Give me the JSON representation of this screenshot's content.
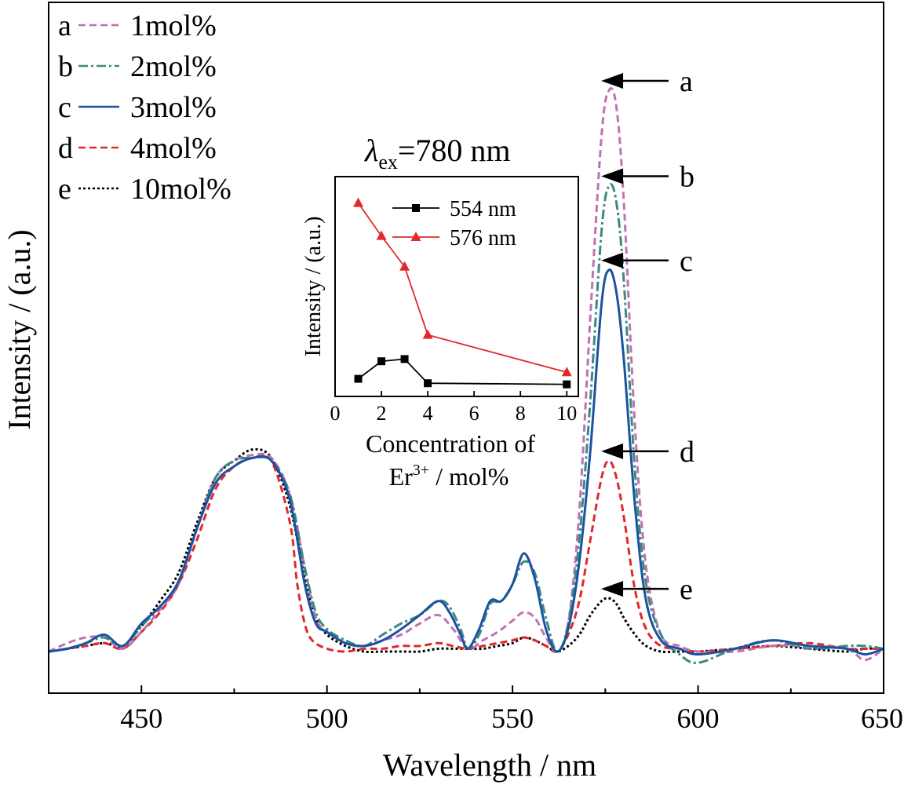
{
  "chart_data": [
    {
      "type": "line",
      "title": "",
      "xlabel": "Wavelength / nm",
      "ylabel": "Intensity / (a.u.)",
      "xlim": [
        425,
        650
      ],
      "xticks": [
        "450",
        "500",
        "550",
        "600",
        "650"
      ],
      "ylim": [
        0,
        1.08
      ],
      "y_ticks_labeled": false,
      "grid": false,
      "legend_position": "top-left",
      "annotation": "=780 nm",
      "annotation_symbol": "λ",
      "annotation_sub": "ex",
      "series": [
        {
          "key": "a",
          "name": "1mol%",
          "color": "#c071b3",
          "dash": "dashed",
          "x": [
            425,
            430,
            435,
            440,
            445,
            450,
            455,
            460,
            465,
            470,
            475,
            480,
            485,
            490,
            494,
            497,
            500,
            505,
            510,
            515,
            520,
            525,
            530,
            534,
            538,
            542,
            546,
            550,
            553,
            556,
            559,
            562,
            565,
            568,
            571,
            574,
            576,
            578,
            580,
            583,
            586,
            590,
            595,
            600,
            610,
            620,
            630,
            640,
            645,
            650
          ],
          "y": [
            0.0,
            0.015,
            0.025,
            0.025,
            0.005,
            0.035,
            0.075,
            0.12,
            0.22,
            0.31,
            0.34,
            0.35,
            0.345,
            0.28,
            0.15,
            0.06,
            0.035,
            0.015,
            0.01,
            0.02,
            0.03,
            0.05,
            0.065,
            0.04,
            0.005,
            0.02,
            0.035,
            0.055,
            0.07,
            0.06,
            0.025,
            0.0,
            0.05,
            0.25,
            0.6,
            0.92,
            1.0,
            0.97,
            0.8,
            0.4,
            0.15,
            0.03,
            0.01,
            0.0,
            0.0,
            0.01,
            0.01,
            0.005,
            -0.015,
            0.005
          ]
        },
        {
          "key": "b",
          "name": "2mol%",
          "color": "#3b8a82",
          "dash": "dashdot",
          "x": [
            425,
            430,
            435,
            440,
            445,
            450,
            455,
            460,
            465,
            470,
            475,
            480,
            485,
            490,
            494,
            497,
            500,
            505,
            510,
            515,
            520,
            525,
            530,
            533,
            536,
            538,
            541,
            544,
            547,
            550,
            553,
            556,
            559,
            562,
            565,
            568,
            571,
            574,
            576,
            578,
            580,
            583,
            586,
            590,
            595,
            600,
            610,
            620,
            630,
            640,
            645,
            650
          ],
          "y": [
            0.0,
            0.005,
            0.015,
            0.025,
            0.01,
            0.045,
            0.08,
            0.125,
            0.22,
            0.31,
            0.34,
            0.345,
            0.34,
            0.28,
            0.15,
            0.07,
            0.04,
            0.02,
            0.01,
            0.03,
            0.05,
            0.065,
            0.09,
            0.08,
            0.04,
            0.005,
            0.03,
            0.085,
            0.09,
            0.12,
            0.16,
            0.14,
            0.06,
            0.0,
            0.05,
            0.2,
            0.45,
            0.75,
            0.83,
            0.8,
            0.66,
            0.32,
            0.12,
            0.03,
            -0.005,
            -0.02,
            0.005,
            0.02,
            0.005,
            0.01,
            0.01,
            0.005
          ]
        },
        {
          "key": "c",
          "name": "3mol%",
          "color": "#1c52a0",
          "dash": "solid",
          "x": [
            425,
            430,
            435,
            440,
            445,
            450,
            455,
            460,
            465,
            470,
            475,
            480,
            485,
            490,
            494,
            497,
            500,
            505,
            510,
            515,
            520,
            525,
            530,
            533,
            536,
            538,
            541,
            544,
            547,
            550,
            553,
            556,
            559,
            562,
            565,
            568,
            571,
            574,
            576,
            578,
            580,
            583,
            586,
            590,
            595,
            600,
            610,
            620,
            630,
            640,
            645,
            650
          ],
          "y": [
            0.0,
            0.005,
            0.015,
            0.03,
            0.01,
            0.05,
            0.08,
            0.125,
            0.22,
            0.3,
            0.33,
            0.345,
            0.34,
            0.27,
            0.12,
            0.05,
            0.035,
            0.015,
            0.01,
            0.02,
            0.04,
            0.065,
            0.09,
            0.07,
            0.03,
            0.005,
            0.04,
            0.09,
            0.09,
            0.12,
            0.175,
            0.13,
            0.04,
            0.0,
            0.04,
            0.16,
            0.36,
            0.62,
            0.68,
            0.64,
            0.52,
            0.26,
            0.09,
            0.02,
            0.005,
            -0.005,
            0.005,
            0.02,
            0.01,
            0.005,
            -0.005,
            0.005
          ]
        },
        {
          "key": "d",
          "name": "4mol%",
          "color": "#e02a2a",
          "dash": "dashed",
          "x": [
            425,
            430,
            435,
            440,
            445,
            450,
            455,
            460,
            465,
            470,
            475,
            480,
            485,
            490,
            492,
            494,
            496,
            500,
            505,
            510,
            515,
            520,
            525,
            530,
            534,
            538,
            542,
            546,
            550,
            553,
            556,
            559,
            562,
            565,
            568,
            571,
            574,
            576,
            578,
            580,
            583,
            586,
            590,
            595,
            600,
            610,
            620,
            630,
            640,
            645,
            650
          ],
          "y": [
            0.0,
            0.005,
            0.01,
            0.015,
            0.005,
            0.035,
            0.07,
            0.12,
            0.2,
            0.29,
            0.33,
            0.345,
            0.34,
            0.23,
            0.12,
            0.05,
            0.02,
            0.005,
            0.0,
            0.005,
            0.005,
            0.01,
            0.01,
            0.015,
            0.01,
            0.005,
            0.01,
            0.015,
            0.02,
            0.025,
            0.02,
            0.01,
            0.0,
            0.03,
            0.09,
            0.2,
            0.31,
            0.34,
            0.31,
            0.24,
            0.11,
            0.04,
            0.01,
            0.005,
            0.0,
            0.005,
            0.01,
            0.015,
            0.005,
            0.005,
            0.005
          ]
        },
        {
          "key": "e",
          "name": "10mol%",
          "color": "#000000",
          "dash": "dotted",
          "x": [
            425,
            430,
            435,
            440,
            445,
            450,
            455,
            460,
            465,
            470,
            475,
            480,
            485,
            490,
            494,
            497,
            500,
            505,
            510,
            515,
            520,
            525,
            530,
            534,
            538,
            542,
            546,
            550,
            553,
            556,
            559,
            562,
            565,
            568,
            571,
            574,
            576,
            578,
            580,
            583,
            586,
            590,
            595,
            600,
            610,
            620,
            630,
            640,
            645,
            650
          ],
          "y": [
            0.0,
            0.005,
            0.01,
            0.015,
            0.01,
            0.045,
            0.09,
            0.14,
            0.23,
            0.31,
            0.34,
            0.36,
            0.345,
            0.26,
            0.13,
            0.06,
            0.03,
            0.01,
            0.0,
            0.0,
            0.0,
            0.0,
            0.005,
            0.005,
            0.005,
            0.005,
            0.01,
            0.015,
            0.025,
            0.02,
            0.01,
            0.0,
            0.01,
            0.03,
            0.065,
            0.09,
            0.095,
            0.085,
            0.06,
            0.03,
            0.01,
            0.0,
            0.0,
            0.0,
            0.005,
            0.01,
            0.005,
            0.0,
            0.005,
            0.005
          ]
        }
      ],
      "peak_labels": [
        {
          "text": "a",
          "x": 576,
          "y": 1.0
        },
        {
          "text": "b",
          "x": 576,
          "y": 0.83
        },
        {
          "text": "c",
          "x": 576,
          "y": 0.68
        },
        {
          "text": "d",
          "x": 576,
          "y": 0.34
        },
        {
          "text": "e",
          "x": 576,
          "y": 0.095
        }
      ]
    },
    {
      "type": "line",
      "title": "",
      "xlabel": "Concentration of Er / mol%",
      "xlabel_line1": "Concentration of",
      "xlabel_line2_main": "Er",
      "xlabel_line2_sup": "3+",
      "xlabel_line2_rest": " / mol%",
      "ylabel": "Intensity / (a.u.)",
      "xlim": [
        0,
        10.5
      ],
      "xticks": [
        "0",
        "2",
        "4",
        "6",
        "8",
        "10"
      ],
      "ylim": [
        0,
        1.0
      ],
      "y_ticks_labeled": false,
      "grid": false,
      "legend_position": "top-right",
      "series": [
        {
          "name": "554 nm",
          "color": "#000000",
          "marker": "square",
          "x": [
            1,
            2,
            3,
            4,
            10
          ],
          "y": [
            0.08,
            0.16,
            0.17,
            0.06,
            0.055
          ]
        },
        {
          "name": "576 nm",
          "color": "#e02a2a",
          "marker": "triangle",
          "x": [
            1,
            2,
            3,
            4,
            10
          ],
          "y": [
            0.88,
            0.73,
            0.59,
            0.28,
            0.11
          ]
        }
      ]
    }
  ]
}
